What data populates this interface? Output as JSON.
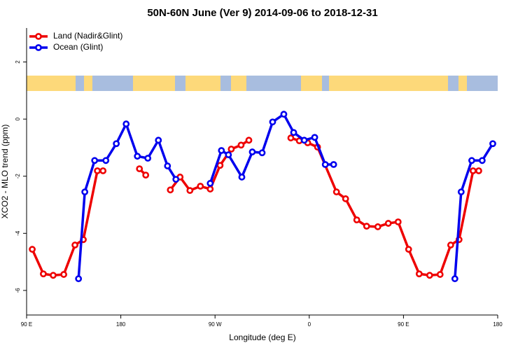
{
  "chart_data": {
    "type": "line",
    "title": "50N-60N June (Ver 9)   2014-09-06 to 2018-12-31",
    "x_label": "Longitude (deg E)",
    "y_label": "XCO2 - MLO trend (ppm)",
    "xlim": [
      90,
      540
    ],
    "ylim": [
      -6.86,
      3.19
    ],
    "xticks": [
      {
        "value": 90,
        "label": "90 E"
      },
      180,
      {
        "value": 270,
        "label": "90 W"
      },
      {
        "value": 360,
        "label": "0"
      },
      {
        "value": 450,
        "label": "90 E"
      },
      {
        "value": 540,
        "label": "180"
      }
    ],
    "yticks": [
      -6,
      -4,
      -2,
      0,
      2
    ],
    "legend": "top-left",
    "series": [
      {
        "name": "Land (Nadir&Glint)",
        "color": "#ee0000",
        "x": [
          95.4,
          106,
          115.4,
          125.5,
          136.2,
          144.2,
          157.6,
          163,
          null,
          197.8,
          203.8,
          null,
          227.3,
          236.6,
          246,
          256,
          265.4,
          274.8,
          285.5,
          294.9,
          302.3,
          null,
          342.4,
          350.5,
          358.5,
          367.9,
          386,
          394.7,
          405.4,
          414.8,
          425.5,
          435.5,
          444.9,
          454.9,
          465,
          475,
          485,
          495.1,
          503.1,
          516.5,
          521.9
        ],
        "values": [
          -4.56,
          -5.42,
          -5.47,
          -5.44,
          -4.41,
          -4.22,
          -1.81,
          -1.81,
          null,
          -1.74,
          -1.96,
          null,
          -2.48,
          -2.03,
          -2.5,
          -2.35,
          -2.45,
          -1.62,
          -1.05,
          -0.91,
          -0.74,
          null,
          -0.66,
          -0.76,
          -0.83,
          -0.98,
          -2.55,
          -2.79,
          -3.53,
          -3.75,
          -3.77,
          -3.65,
          -3.6,
          -4.56,
          -5.42,
          -5.47,
          -5.44,
          -4.41,
          -4.22,
          -1.81,
          -1.81
        ]
      },
      {
        "name": "Ocean (Glint)",
        "color": "#0000ee",
        "x": [
          139.6,
          145.6,
          155,
          165.7,
          175.7,
          185.1,
          195.8,
          205.8,
          215.9,
          224.6,
          232.6,
          null,
          265.4,
          276.1,
          282.8,
          295.6,
          305.6,
          315,
          325,
          335.7,
          345.1,
          355.2,
          365.2,
          375.3,
          383.3,
          null,
          499.1,
          505.1,
          515.2,
          525.2,
          535.3
        ],
        "values": [
          -5.59,
          -2.55,
          -1.45,
          -1.45,
          -0.86,
          -0.17,
          -1.3,
          -1.37,
          -0.74,
          -1.64,
          -2.11,
          null,
          -2.25,
          -1.1,
          -1.25,
          -2.03,
          -1.15,
          -1.18,
          -0.1,
          0.17,
          -0.47,
          -0.74,
          -0.64,
          -1.59,
          -1.59,
          null,
          -5.59,
          -2.55,
          -1.45,
          -1.45,
          -0.86
        ]
      }
    ]
  }
}
